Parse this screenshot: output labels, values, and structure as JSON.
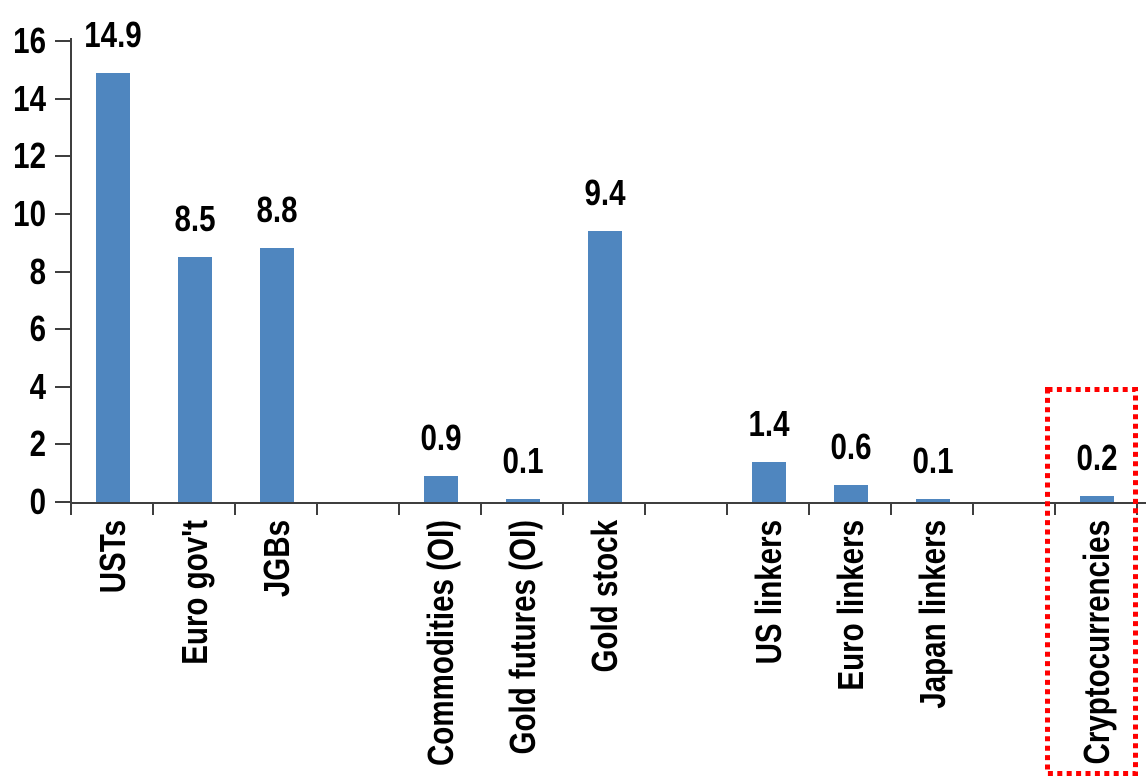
{
  "chart_data": {
    "type": "bar",
    "categories": [
      "USTs",
      "Euro gov't",
      "JGBs",
      "Commodities (OI)",
      "Gold futures (OI)",
      "Gold stock",
      "US linkers",
      "Euro linkers",
      "Japan linkers",
      "Cryptocurrencies"
    ],
    "values": [
      14.9,
      8.5,
      8.8,
      0.9,
      0.1,
      9.4,
      1.4,
      0.6,
      0.1,
      0.2
    ],
    "value_labels": [
      "14.9",
      "8.5",
      "8.8",
      "0.9",
      "0.1",
      "9.4",
      "1.4",
      "0.6",
      "0.1",
      "0.2"
    ],
    "slots": [
      0,
      1,
      2,
      4,
      5,
      6,
      8,
      9,
      10,
      12
    ],
    "total_slots": 13,
    "group_gaps_after": [
      "JGBs",
      "Gold stock",
      "Japan linkers"
    ],
    "y_ticks": [
      "0",
      "2",
      "4",
      "6",
      "8",
      "10",
      "12",
      "14",
      "16"
    ],
    "ylim": [
      0,
      16
    ],
    "grid": false,
    "legend": false,
    "xlabel": "",
    "ylabel": "",
    "bar_color": "#4F86BF",
    "axis_color": "#3f3f3f",
    "text_color": "#000000",
    "highlight": {
      "category": "Cryptocurrencies",
      "style": "dotted-outline",
      "color": "#FF0000"
    }
  }
}
